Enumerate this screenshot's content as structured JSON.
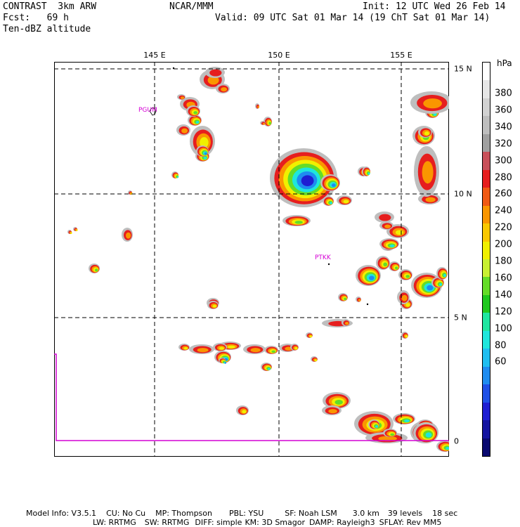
{
  "header": {
    "model_name": "CONTRAST  3km ARW",
    "forecast": "Fcst:   69 h",
    "field": "Ten-dBZ altitude",
    "organization": "NCAR/MMM",
    "init": "Init: 12 UTC Wed 26 Feb 14",
    "valid": "Valid: 09 UTC Sat 01 Mar 14 (19 ChT Sat 01 Mar 14)"
  },
  "map": {
    "lon_labels": [
      "145 E",
      "150 E",
      "155 E"
    ],
    "lat_labels": [
      "15 N",
      "10 N",
      "5 N",
      "0"
    ],
    "stations": [
      "PGUM",
      "PTKK"
    ],
    "grid_style": "dashed",
    "border_color": "#d400d4"
  },
  "colorbar": {
    "unit": "hPa",
    "labels": [
      "380",
      "360",
      "340",
      "320",
      "300",
      "280",
      "260",
      "240",
      "220",
      "200",
      "180",
      "160",
      "140",
      "120",
      "100",
      "80",
      "60"
    ],
    "colors": [
      "#ffffff",
      "#e6e6e6",
      "#d2d2d2",
      "#bebebe",
      "#a0a0a0",
      "#c8505a",
      "#e61e1e",
      "#f05a14",
      "#fa9600",
      "#fac800",
      "#f0f000",
      "#c8f032",
      "#64dc28",
      "#1ec81e",
      "#1ee6a0",
      "#1ee6dc",
      "#1ebef0",
      "#1e8cf0",
      "#1e50e6",
      "#1e1ed2",
      "#1414a0",
      "#0a0a70"
    ]
  },
  "footer": {
    "line1": [
      "Model Info: V3.5.1",
      "CU: No Cu",
      "MP: Thompson",
      "PBL: YSU",
      "SF: Noah LSM",
      "3.0 km",
      "39 levels",
      "18 sec"
    ],
    "line2": [
      "LW: RRTMG",
      "SW: RRTMG",
      "DIFF: simple",
      "KM: 3D Smagor",
      "DAMP: Rayleigh3",
      "SFLAY: Rev MM5"
    ]
  }
}
